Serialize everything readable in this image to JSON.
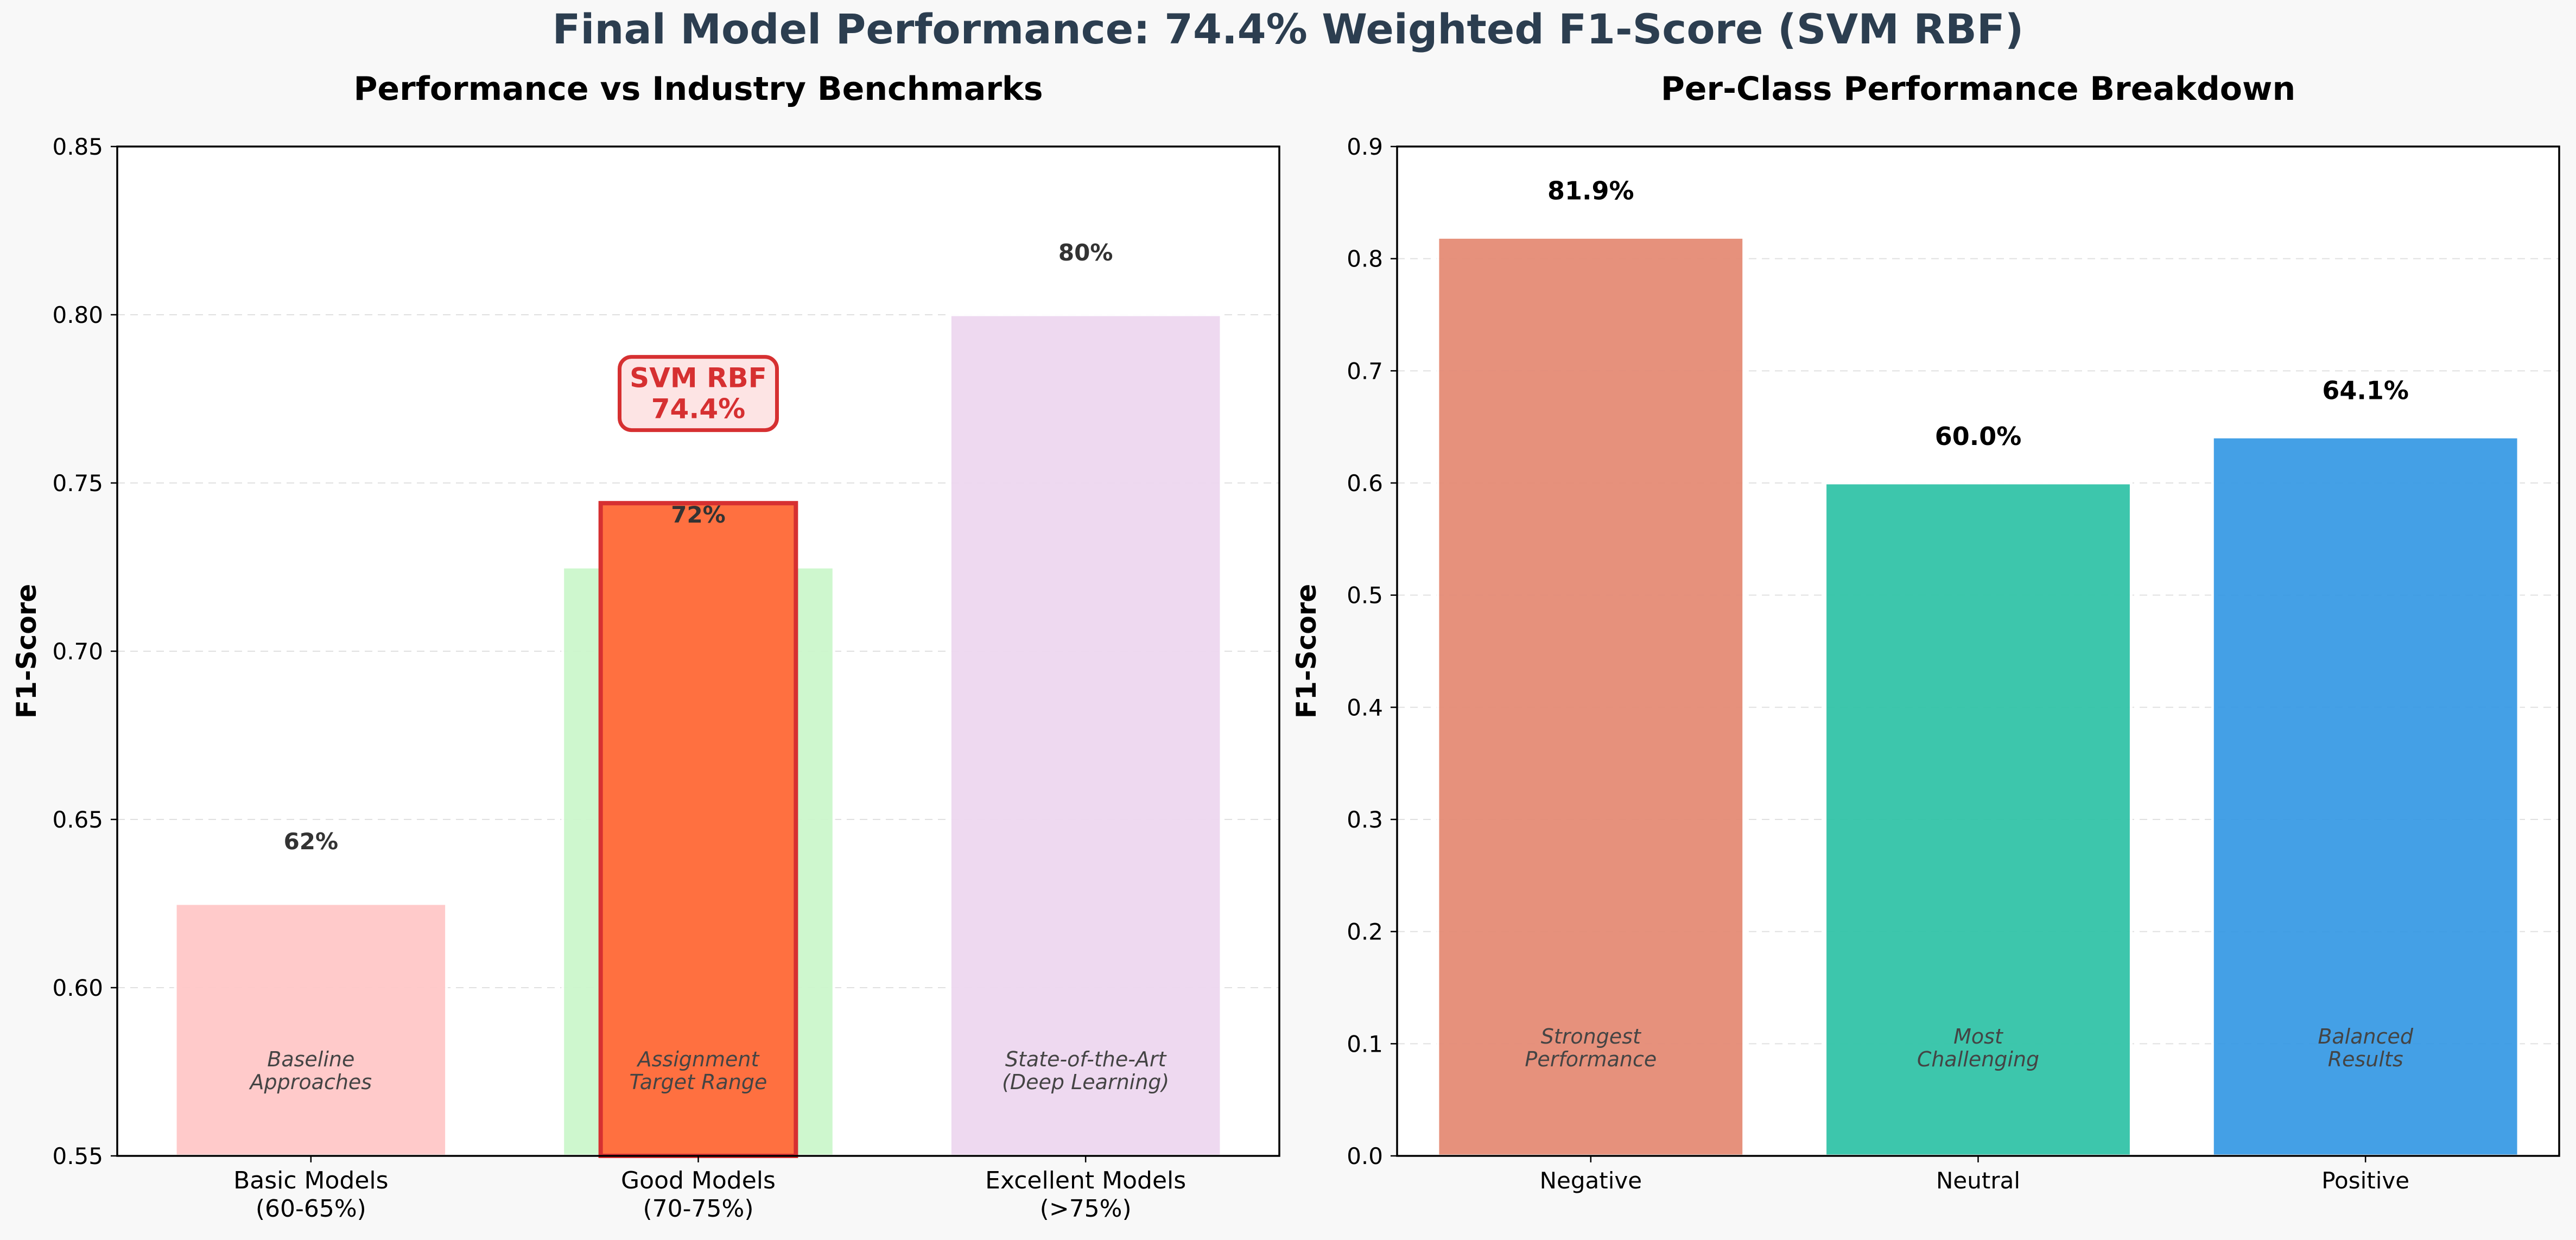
{
  "figure": {
    "title": "Final Model Performance: 74.4% Weighted F1-Score (SVM RBF)",
    "background": "#f8f8f8"
  },
  "chart_data": [
    {
      "type": "bar",
      "title": "Performance vs Industry Benchmarks",
      "ylabel": "F1-Score",
      "xlabel": "",
      "ylim": [
        0.55,
        0.85
      ],
      "yticks": [
        0.55,
        0.6,
        0.65,
        0.7,
        0.75,
        0.8,
        0.85
      ],
      "ytick_labels": [
        "0.55",
        "0.60",
        "0.65",
        "0.70",
        "0.75",
        "0.80",
        "0.85"
      ],
      "grid": true,
      "categories": [
        {
          "line1": "Basic Models",
          "line2": "(60-65%)"
        },
        {
          "line1": "Good Models",
          "line2": "(70-75%)"
        },
        {
          "line1": "Excellent Models",
          "line2": "(>75%)"
        }
      ],
      "values": [
        0.625,
        0.725,
        0.8
      ],
      "value_labels": [
        "62%",
        "72%",
        "80%"
      ],
      "colors": [
        "#ffc8c8",
        "#ccf7cc",
        "#eed8f0"
      ],
      "notes": [
        {
          "line1": "Baseline",
          "line2": "Approaches"
        },
        {
          "line1": "Assignment",
          "line2": "Target Range"
        },
        {
          "line1": "State-of-the-Art",
          "line2": "(Deep Learning)"
        }
      ],
      "highlight": {
        "category_index": 1,
        "value": 0.744,
        "fill": "#ff7040",
        "edge": "#d63031",
        "callout_line1": "SVM RBF",
        "callout_line2": "74.4%",
        "callout_value_y": 0.777,
        "callout_text_color": "#d63031",
        "callout_fill": "#fde4e4"
      }
    },
    {
      "type": "bar",
      "title": "Per-Class Performance Breakdown",
      "ylabel": "F1-Score",
      "xlabel": "",
      "ylim": [
        0,
        0.9
      ],
      "yticks": [
        0,
        0.1,
        0.2,
        0.3,
        0.4,
        0.5,
        0.6,
        0.7,
        0.8,
        0.9
      ],
      "ytick_labels": [
        "0.0",
        "0.1",
        "0.2",
        "0.3",
        "0.4",
        "0.5",
        "0.6",
        "0.7",
        "0.8",
        "0.9"
      ],
      "grid": true,
      "categories": [
        "Negative",
        "Neutral",
        "Positive"
      ],
      "values": [
        0.819,
        0.6,
        0.641
      ],
      "value_labels": [
        "81.9%",
        "60.0%",
        "64.1%"
      ],
      "colors": [
        "#e58c76",
        "#33c4a8",
        "#3a9be5"
      ],
      "notes": [
        {
          "line1": "Strongest",
          "line2": "Performance"
        },
        {
          "line1": "Most",
          "line2": "Challenging"
        },
        {
          "line1": "Balanced",
          "line2": "Results"
        }
      ]
    }
  ]
}
